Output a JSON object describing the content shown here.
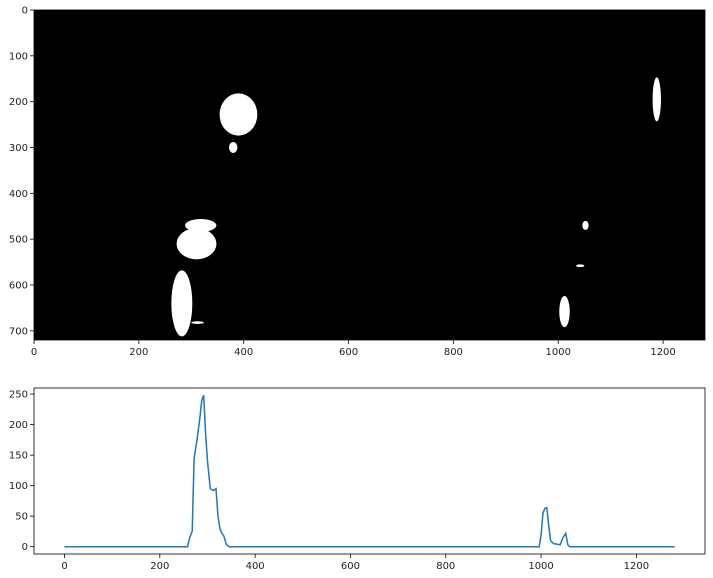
{
  "chart_data": [
    {
      "type": "image",
      "title": "",
      "xlabel": "",
      "ylabel": "",
      "xlim": [
        0,
        1280
      ],
      "ylim": [
        720,
        0
      ],
      "xticks": [
        0,
        200,
        400,
        600,
        800,
        1000,
        1200
      ],
      "yticks": [
        0,
        100,
        200,
        300,
        400,
        500,
        600,
        700
      ],
      "background": "#000000",
      "foreground": "#ffffff",
      "blobs": [
        {
          "name": "top-blob",
          "cx": 390,
          "cy": 228,
          "rx": 36,
          "ry": 46
        },
        {
          "name": "top-blob-tail",
          "cx": 380,
          "cy": 300,
          "rx": 8,
          "ry": 12
        },
        {
          "name": "left-lane-upper",
          "cx": 318,
          "cy": 470,
          "rx": 30,
          "ry": 14
        },
        {
          "name": "left-lane-mid",
          "cx": 310,
          "cy": 510,
          "rx": 38,
          "ry": 34
        },
        {
          "name": "left-lane-lower",
          "cx": 282,
          "cy": 640,
          "rx": 20,
          "ry": 72
        },
        {
          "name": "left-lane-dash",
          "cx": 312,
          "cy": 682,
          "rx": 12,
          "ry": 3
        },
        {
          "name": "right-dot-upper",
          "cx": 1052,
          "cy": 470,
          "rx": 6,
          "ry": 10
        },
        {
          "name": "right-dot-mid",
          "cx": 1042,
          "cy": 558,
          "rx": 8,
          "ry": 3
        },
        {
          "name": "right-lane-lower",
          "cx": 1012,
          "cy": 658,
          "rx": 10,
          "ry": 34
        },
        {
          "name": "far-right-streak",
          "cx": 1188,
          "cy": 195,
          "rx": 8,
          "ry": 48
        }
      ]
    },
    {
      "type": "line",
      "title": "",
      "xlabel": "",
      "ylabel": "",
      "xlim": [
        -64,
        1344
      ],
      "ylim": [
        -12,
        260
      ],
      "xticks": [
        0,
        200,
        400,
        600,
        800,
        1000,
        1200
      ],
      "yticks": [
        0,
        50,
        100,
        150,
        200,
        250
      ],
      "color": "#1f77b4",
      "x": [
        0,
        258,
        263,
        268,
        272,
        278,
        284,
        288,
        292,
        296,
        300,
        306,
        312,
        318,
        322,
        326,
        330,
        334,
        340,
        346,
        350,
        400,
        600,
        800,
        996,
        1000,
        1004,
        1008,
        1012,
        1016,
        1020,
        1026,
        1040,
        1046,
        1052,
        1056,
        1060,
        1280
      ],
      "y": [
        0,
        0,
        15,
        25,
        145,
        175,
        210,
        240,
        248,
        185,
        140,
        95,
        92,
        95,
        50,
        30,
        22,
        18,
        3,
        0,
        0,
        0,
        0,
        0,
        0,
        20,
        55,
        63,
        64,
        35,
        10,
        5,
        3,
        15,
        22,
        3,
        0,
        0
      ]
    }
  ]
}
